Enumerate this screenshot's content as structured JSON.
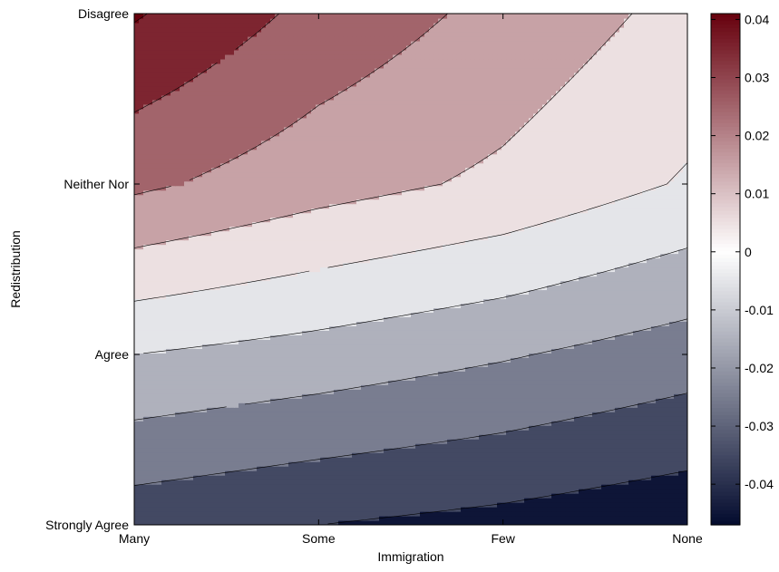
{
  "chart_data": {
    "type": "contour",
    "xlabel": "Immigration",
    "ylabel": "Redistribution",
    "x_categories": [
      "Many",
      "Some",
      "Few",
      "None"
    ],
    "y_categories": [
      "Strongly Agree",
      "Agree",
      "Neither Nor",
      "Disagree"
    ],
    "z_grid_rows_from_strongly_agree_to_disagree": [
      [
        -0.036,
        -0.04,
        -0.043,
        -0.047
      ],
      [
        -0.01,
        -0.014,
        -0.019,
        -0.025
      ],
      [
        0.022,
        0.014,
        0.008,
        -0.001
      ],
      [
        0.041,
        0.027,
        0.017,
        0.007
      ]
    ],
    "contour_levels": [
      -0.05,
      -0.04,
      -0.03,
      -0.02,
      -0.01,
      0.0,
      0.01,
      0.02,
      0.03,
      0.04,
      0.05
    ],
    "colorbar": {
      "ticks": [
        0.04,
        0.03,
        0.02,
        0.01,
        0,
        -0.01,
        -0.02,
        -0.03,
        -0.04
      ],
      "tick_labels": [
        "0.04",
        "0.03",
        "0.02",
        "0.01",
        "0",
        "-0.01",
        "-0.02",
        "-0.03",
        "-0.04"
      ],
      "range": [
        -0.047,
        0.041
      ]
    },
    "colors": {
      "max": "#67000d",
      "mid": "#ffffff",
      "min": "#030b2e",
      "contour_line": "#000000"
    }
  }
}
